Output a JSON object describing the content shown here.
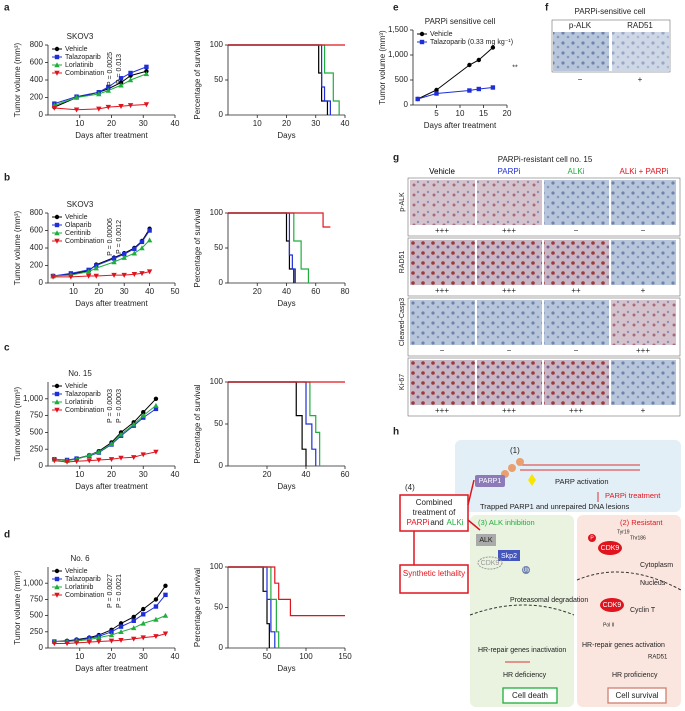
{
  "figure": {
    "labels": [
      "a",
      "b",
      "c",
      "d",
      "e",
      "f",
      "g",
      "h"
    ]
  },
  "chart_data": [
    {
      "type": "line",
      "title": "SKOV3",
      "xlabel": "Days after treatment",
      "ylabel": "Tumor volume (mm³)",
      "x": [
        2,
        9,
        16,
        19,
        23,
        26,
        31
      ],
      "xlim": [
        0,
        40
      ],
      "xticks": [
        10,
        20,
        30,
        40
      ],
      "ylim": [
        0,
        800
      ],
      "yticks": [
        0,
        200,
        400,
        600,
        800
      ],
      "legend": "upper left",
      "annotations": [
        "P = 0.0025",
        "P = 0.013"
      ],
      "series": [
        {
          "name": "Vehicle",
          "color": "#000000",
          "marker": "circle",
          "values": [
            90,
            200,
            260,
            300,
            370,
            450,
            500
          ]
        },
        {
          "name": "Talazoparib",
          "color": "#1f2fd8",
          "marker": "square",
          "values": [
            130,
            210,
            260,
            320,
            420,
            480,
            550
          ]
        },
        {
          "name": "Lorlatinib",
          "color": "#1fae3c",
          "marker": "triangle",
          "values": [
            110,
            200,
            240,
            280,
            340,
            400,
            470
          ]
        },
        {
          "name": "Combination",
          "color": "#e0141e",
          "marker": "triangle-down",
          "values": [
            80,
            60,
            70,
            90,
            100,
            110,
            120
          ]
        }
      ]
    },
    {
      "type": "step",
      "xlabel": "Days",
      "ylabel": "Percentage of survival",
      "xlim": [
        0,
        40
      ],
      "xticks": [
        10,
        20,
        30,
        40
      ],
      "ylim": [
        0,
        100
      ],
      "yticks": [
        0,
        50,
        100
      ],
      "series": [
        {
          "color": "#000000",
          "x": [
            0,
            31,
            32,
            34
          ],
          "values": [
            100,
            60,
            20,
            0
          ]
        },
        {
          "color": "#1f2fd8",
          "x": [
            0,
            32,
            33,
            35
          ],
          "values": [
            100,
            40,
            20,
            0
          ]
        },
        {
          "color": "#1fae3c",
          "x": [
            0,
            33,
            36,
            38
          ],
          "values": [
            100,
            60,
            20,
            0
          ]
        },
        {
          "color": "#e0141e",
          "x": [
            0,
            40
          ],
          "values": [
            100,
            100
          ]
        }
      ]
    },
    {
      "type": "line",
      "title": "SKOV3",
      "xlabel": "Days after treatment",
      "ylabel": "Tumor volume (mm³)",
      "x": [
        2,
        9,
        16,
        19,
        26,
        30,
        34,
        37,
        40
      ],
      "xlim": [
        0,
        50
      ],
      "xticks": [
        10,
        20,
        30,
        40,
        50
      ],
      "ylim": [
        0,
        800
      ],
      "yticks": [
        0,
        200,
        400,
        600,
        800
      ],
      "legend": "upper left",
      "annotations": [
        "P = 0.00006",
        "P = 0.0012"
      ],
      "series": [
        {
          "name": "Vehicle",
          "color": "#000000",
          "marker": "circle",
          "values": [
            80,
            100,
            140,
            210,
            290,
            340,
            400,
            480,
            620
          ]
        },
        {
          "name": "Olaparib",
          "color": "#1f2fd8",
          "marker": "square",
          "values": [
            80,
            110,
            150,
            200,
            280,
            330,
            390,
            470,
            600
          ]
        },
        {
          "name": "Ceritinib",
          "color": "#1fae3c",
          "marker": "triangle",
          "values": [
            80,
            90,
            130,
            170,
            240,
            290,
            340,
            400,
            490
          ]
        },
        {
          "name": "Combination",
          "color": "#e0141e",
          "marker": "triangle-down",
          "values": [
            70,
            70,
            80,
            80,
            90,
            90,
            100,
            110,
            130
          ]
        }
      ]
    },
    {
      "type": "step",
      "xlabel": "Days",
      "ylabel": "Percentage of survival",
      "xlim": [
        0,
        80
      ],
      "xticks": [
        20,
        40,
        60,
        80
      ],
      "ylim": [
        0,
        100
      ],
      "yticks": [
        0,
        50,
        100
      ],
      "series": [
        {
          "color": "#000000",
          "x": [
            0,
            40,
            42,
            45
          ],
          "values": [
            100,
            60,
            20,
            0
          ]
        },
        {
          "color": "#1f2fd8",
          "x": [
            0,
            42,
            44,
            46
          ],
          "values": [
            100,
            40,
            20,
            0
          ]
        },
        {
          "color": "#1fae3c",
          "x": [
            0,
            45,
            50,
            55
          ],
          "values": [
            100,
            60,
            20,
            0
          ]
        },
        {
          "color": "#e0141e",
          "x": [
            0,
            65,
            70
          ],
          "values": [
            100,
            80,
            80
          ]
        }
      ]
    },
    {
      "type": "line",
      "title": "No. 15",
      "xlabel": "Days after treatment",
      "ylabel": "Tumor volume (mm³)",
      "x": [
        2,
        6,
        9,
        13,
        16,
        20,
        23,
        27,
        30,
        34
      ],
      "xlim": [
        0,
        40
      ],
      "xticks": [
        10,
        20,
        30,
        40
      ],
      "ylim": [
        0,
        1250
      ],
      "yticks": [
        0,
        250,
        500,
        750,
        {
          "value": 1000,
          "label": "1,000"
        }
      ],
      "legend": "upper left",
      "annotations": [
        "P = 0.0003",
        "P = 0.0003"
      ],
      "series": [
        {
          "name": "Vehicle",
          "color": "#000000",
          "marker": "circle",
          "values": [
            100,
            80,
            110,
            160,
            220,
            350,
            500,
            650,
            800,
            1000
          ]
        },
        {
          "name": "Talazoparib",
          "color": "#1f2fd8",
          "marker": "square",
          "values": [
            100,
            90,
            110,
            150,
            200,
            320,
            450,
            600,
            720,
            850
          ]
        },
        {
          "name": "Lorlatinib",
          "color": "#1fae3c",
          "marker": "triangle",
          "values": [
            100,
            80,
            100,
            160,
            210,
            330,
            470,
            620,
            750,
            900
          ]
        },
        {
          "name": "Combination",
          "color": "#e0141e",
          "marker": "triangle-down",
          "values": [
            80,
            60,
            70,
            80,
            90,
            100,
            120,
            130,
            170,
            210
          ]
        }
      ]
    },
    {
      "type": "step",
      "xlabel": "Days",
      "ylabel": "Percentage of survival",
      "xlim": [
        0,
        60
      ],
      "xticks": [
        20,
        40,
        60
      ],
      "ylim": [
        0,
        100
      ],
      "yticks": [
        0,
        50,
        100
      ],
      "series": [
        {
          "color": "#000000",
          "x": [
            0,
            35,
            38,
            40
          ],
          "values": [
            100,
            60,
            20,
            0
          ]
        },
        {
          "color": "#1f2fd8",
          "x": [
            0,
            40,
            43,
            45
          ],
          "values": [
            100,
            50,
            20,
            0
          ]
        },
        {
          "color": "#1fae3c",
          "x": [
            0,
            42,
            45,
            47
          ],
          "values": [
            100,
            60,
            40,
            0
          ]
        },
        {
          "color": "#e0141e",
          "x": [
            0,
            60
          ],
          "values": [
            100,
            100
          ]
        }
      ]
    },
    {
      "type": "line",
      "title": "No. 6",
      "xlabel": "Days after treatment",
      "ylabel": "Tumor volume (mm³)",
      "x": [
        2,
        6,
        9,
        13,
        16,
        20,
        23,
        27,
        30,
        34,
        37
      ],
      "xlim": [
        0,
        40
      ],
      "xticks": [
        10,
        20,
        30,
        40
      ],
      "ylim": [
        0,
        1250
      ],
      "yticks": [
        0,
        250,
        500,
        750,
        {
          "value": 1000,
          "label": "1,000"
        }
      ],
      "legend": "upper left",
      "annotations": [
        "P = 0.0027",
        "P = 0.0021"
      ],
      "series": [
        {
          "name": "Vehicle",
          "color": "#000000",
          "marker": "circle",
          "values": [
            100,
            110,
            130,
            160,
            200,
            280,
            380,
            480,
            600,
            750,
            960
          ]
        },
        {
          "name": "Talazoparib",
          "color": "#1f2fd8",
          "marker": "square",
          "values": [
            100,
            100,
            120,
            150,
            180,
            250,
            330,
            420,
            520,
            640,
            820
          ]
        },
        {
          "name": "Lorlatinib",
          "color": "#1fae3c",
          "marker": "triangle",
          "values": [
            100,
            100,
            110,
            130,
            160,
            200,
            250,
            310,
            380,
            440,
            500
          ]
        },
        {
          "name": "Combination",
          "color": "#e0141e",
          "marker": "triangle-down",
          "values": [
            70,
            70,
            80,
            90,
            100,
            110,
            120,
            140,
            160,
            180,
            220
          ]
        }
      ]
    },
    {
      "type": "step",
      "xlabel": "Days",
      "ylabel": "Percentage of survival",
      "xlim": [
        0,
        150
      ],
      "xticks": [
        50,
        100,
        150
      ],
      "ylim": [
        0,
        100
      ],
      "yticks": [
        0,
        50,
        100
      ],
      "series": [
        {
          "color": "#000000",
          "x": [
            0,
            45,
            50,
            53
          ],
          "values": [
            100,
            70,
            30,
            0
          ]
        },
        {
          "color": "#1f2fd8",
          "x": [
            0,
            50,
            55,
            60
          ],
          "values": [
            100,
            60,
            20,
            0
          ]
        },
        {
          "color": "#1fae3c",
          "x": [
            0,
            55,
            62,
            65
          ],
          "values": [
            100,
            60,
            20,
            0
          ]
        },
        {
          "color": "#e0141e",
          "x": [
            0,
            60,
            65,
            70,
            80,
            150
          ],
          "values": [
            100,
            80,
            60,
            60,
            40,
            40
          ]
        }
      ]
    },
    {
      "type": "line",
      "title": "PARPi sensitive cell",
      "xlabel": "Days after treatment",
      "ylabel": "Tumor volume (mm³)",
      "x": [
        1,
        5,
        12,
        14,
        17
      ],
      "xlim": [
        0,
        20
      ],
      "xticks": [
        5,
        10,
        15,
        20
      ],
      "ylim": [
        0,
        1500
      ],
      "yticks": [
        0,
        500,
        {
          "value": 1000,
          "label": "1,000"
        },
        {
          "value": 1500,
          "label": "1,500"
        }
      ],
      "legend": "upper left",
      "annotations": [
        "**"
      ],
      "series": [
        {
          "name": "Vehicle",
          "color": "#000000",
          "marker": "circle",
          "values": [
            120,
            300,
            800,
            900,
            1150
          ]
        },
        {
          "name": "Talazoparib (0.33 mg kg⁻¹)",
          "color": "#1f2fd8",
          "marker": "square",
          "values": [
            120,
            230,
            290,
            320,
            350
          ]
        }
      ]
    }
  ],
  "panel_f": {
    "title": "PARPi-sensitive cell",
    "columns": [
      "p-ALK",
      "RAD51"
    ],
    "scores": [
      "−",
      "+"
    ]
  },
  "panel_g": {
    "title": "PARPi-resistant cell no. 15",
    "columns": [
      "Vehicle",
      "PARPi",
      "ALKi",
      "ALKi + PARPi"
    ],
    "rows": [
      {
        "name": "p-ALK",
        "scores": [
          "+++",
          "+++",
          "−",
          "−"
        ]
      },
      {
        "name": "RAD51",
        "scores": [
          "+++",
          "+++",
          "++",
          "+"
        ]
      },
      {
        "name": "Cleaved-Casp3",
        "scores": [
          "−",
          "−",
          "−",
          "+++"
        ]
      },
      {
        "name": "Ki-67",
        "scores": [
          "+++",
          "+++",
          "+++",
          "+"
        ]
      }
    ]
  },
  "panel_h": {
    "step1": "(1)",
    "parp1": "PARP1",
    "activation": "PARP activation",
    "treatment": "PARPi treatment",
    "trapped": "Trapped PARP1 and unrepaired DNA lesions",
    "step4": "(4)",
    "combined": "Combined",
    "treatment_of": "treatment of",
    "parpi": "PARPi",
    "and": "and",
    "alki": "ALKi",
    "lethality": "Synthetic lethality",
    "step3": "(3) ALK inhibition",
    "step2": "(2) Resistant",
    "alk": "ALK",
    "skp2": "Skp2",
    "cdk9": "CDK9",
    "ub": "Ub",
    "degradation": "Proteasomal degradation",
    "inactivation": "HR-repair genes inactivation",
    "deficiency": "HR deficiency",
    "death": "Cell death",
    "p": "P",
    "tyr": "Tyr19",
    "thr": "Thr186",
    "cytoplasm": "Cytoplasm",
    "nucleus": "Nucleus",
    "cyclin": "Cyclin T",
    "pol": "Pol II",
    "activation2": "HR-repair genes activation",
    "rad51": "RAD51",
    "proficiency": "HR proficiency",
    "survival": "Cell survival"
  }
}
